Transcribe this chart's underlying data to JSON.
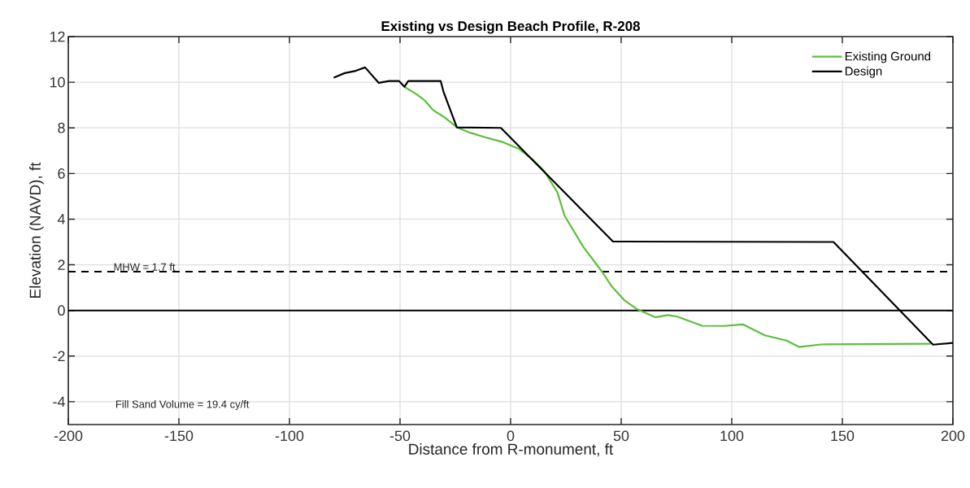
{
  "chart_data": {
    "type": "line",
    "title": "Existing vs Design Beach Profile, R-208",
    "xlabel": "Distance from R-monument, ft",
    "ylabel": "Elevation (NAVD), ft",
    "series": [
      {
        "name": "Existing Ground",
        "color": "#5cbf3c",
        "x": [
          -48.0,
          -42.5,
          -38.9,
          -35.2,
          -30.3,
          -24.2,
          -18.0,
          -11.9,
          -3.3,
          4.0,
          10.2,
          15.1,
          21.2,
          24.4,
          32.9,
          41.4,
          45.6,
          51.3,
          56.9,
          65.4,
          71.1,
          75.3,
          86.6,
          96.5,
          105.0,
          114.9,
          124.8,
          130.4,
          140.4,
          189.9
        ],
        "values": [
          9.8,
          9.47,
          9.21,
          8.79,
          8.49,
          8.02,
          7.78,
          7.6,
          7.37,
          7.07,
          6.59,
          6.12,
          5.17,
          4.15,
          2.78,
          1.69,
          1.07,
          0.46,
          0.07,
          -0.3,
          -0.2,
          -0.27,
          -0.67,
          -0.68,
          -0.61,
          -1.09,
          -1.32,
          -1.6,
          -1.49,
          -1.46
        ]
      },
      {
        "name": "Design",
        "color": "#000000",
        "x": [
          -80,
          -75,
          -70,
          -65.8,
          -59.6,
          -55,
          -50.4,
          -48,
          -46.3,
          -31.6,
          -30.3,
          -24.3,
          -4.4,
          46.3,
          146,
          191,
          200
        ],
        "values": [
          10.2,
          10.4,
          10.5,
          10.65,
          9.97,
          10.05,
          10.05,
          9.8,
          10.05,
          10.05,
          9.57,
          8.02,
          8.0,
          3.02,
          3.0,
          -1.5,
          -1.42
        ]
      }
    ],
    "xlim": [
      -200,
      200
    ],
    "xticks": [
      -200,
      -150,
      -100,
      -50,
      0,
      50,
      100,
      150,
      200
    ],
    "ylim": [
      -5,
      12
    ],
    "yticks": [
      -4,
      -2,
      0,
      2,
      4,
      6,
      8,
      10,
      12
    ],
    "ref_lines": [
      {
        "axis": "y",
        "value": 1.7,
        "label": "MHW = 1.7 ft",
        "color": "#000000",
        "line_style": "dashed"
      },
      {
        "axis": "y",
        "value": 0,
        "color": "#000000",
        "line_style": "solid"
      }
    ],
    "annotations": [
      "Fill Sand Volume = 19.4 cy/ft"
    ],
    "grid": true,
    "legend": "top right",
    "marker": "none",
    "line_style": "solid"
  }
}
